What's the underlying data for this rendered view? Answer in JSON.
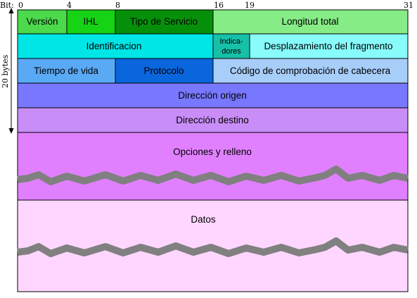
{
  "bit_axis": {
    "prefix": "Bit:",
    "ticks": [
      "0",
      "4",
      "8",
      "16",
      "19",
      "31"
    ]
  },
  "size_label": "20 bytes",
  "rows": [
    {
      "cells": [
        {
          "label": "Versión",
          "color": "#4cd94c"
        },
        {
          "label": "IHL",
          "color": "#16d316"
        },
        {
          "label": "Tipo de Servicio",
          "color": "#06900a"
        },
        {
          "label": "Longitud total",
          "color": "#86ec86"
        }
      ]
    },
    {
      "cells": [
        {
          "label": "Identificacion",
          "color": "#00e5e5"
        },
        {
          "label_line1": "Indica-",
          "label_line2": "dores",
          "color": "#17c0a8"
        },
        {
          "label": "Desplazamiento del fragmento",
          "color": "#88fbfb"
        }
      ]
    },
    {
      "cells": [
        {
          "label": "Tiempo de vida",
          "color": "#5aa9f4"
        },
        {
          "label": "Protocolo",
          "color": "#0a66dc"
        },
        {
          "label": "Código de comprobación de cabecera",
          "color": "#a7cdf9"
        }
      ]
    },
    {
      "cells": [
        {
          "label": "Dirección origen",
          "color": "#7878ff"
        }
      ]
    },
    {
      "cells": [
        {
          "label": "Dirección destino",
          "color": "#c98df7"
        }
      ]
    }
  ],
  "options": {
    "label": "Opciones y relleno",
    "color": "#e180ff"
  },
  "data_block": {
    "label": "Datos",
    "color": "#ffd6ff"
  },
  "break_color": "#808080"
}
